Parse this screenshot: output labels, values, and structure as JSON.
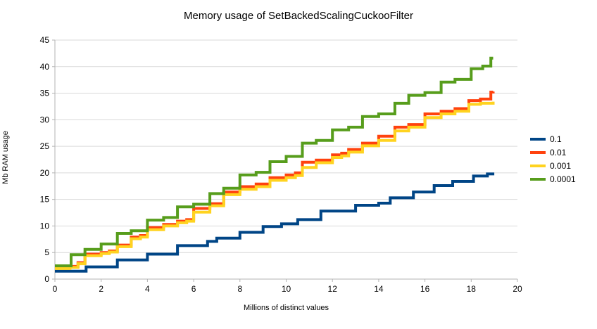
{
  "chart_data": {
    "type": "line",
    "line_style": "step",
    "title": "Memory usage of SetBackedScalingCuckooFilter",
    "xlabel": "Millions of distinct values",
    "ylabel": "Mb RAM usage",
    "xlim": [
      0,
      20
    ],
    "ylim": [
      0,
      45
    ],
    "x_ticks": [
      0,
      2,
      4,
      6,
      8,
      10,
      12,
      14,
      16,
      18,
      20
    ],
    "y_ticks": [
      0,
      5,
      10,
      15,
      20,
      25,
      30,
      35,
      40,
      45
    ],
    "grid": "horizontal",
    "legend_position": "right",
    "series": [
      {
        "name": "0.1",
        "color": "#004586",
        "points": [
          [
            0,
            1.5
          ],
          [
            1.35,
            2.3
          ],
          [
            2.7,
            3.6
          ],
          [
            4.0,
            4.7
          ],
          [
            5.3,
            6.3
          ],
          [
            6.6,
            7.1
          ],
          [
            7.0,
            7.7
          ],
          [
            8.0,
            8.8
          ],
          [
            9.0,
            9.9
          ],
          [
            9.8,
            10.4
          ],
          [
            10.5,
            11.2
          ],
          [
            11.5,
            12.8
          ],
          [
            13.0,
            13.9
          ],
          [
            14.0,
            14.3
          ],
          [
            14.5,
            15.3
          ],
          [
            15.5,
            16.4
          ],
          [
            16.4,
            17.6
          ],
          [
            17.2,
            18.4
          ],
          [
            18.1,
            19.4
          ],
          [
            18.7,
            19.8
          ],
          [
            19.0,
            19.8
          ]
        ]
      },
      {
        "name": "0.01",
        "color": "#ff420e",
        "points": [
          [
            0,
            2.2
          ],
          [
            0.65,
            2.4
          ],
          [
            1.0,
            3.1
          ],
          [
            1.3,
            4.7
          ],
          [
            2.0,
            5.0
          ],
          [
            2.35,
            5.3
          ],
          [
            2.7,
            6.4
          ],
          [
            3.3,
            7.9
          ],
          [
            3.7,
            8.2
          ],
          [
            4.0,
            9.7
          ],
          [
            4.7,
            10.3
          ],
          [
            5.3,
            10.9
          ],
          [
            5.7,
            11.2
          ],
          [
            6.0,
            13.3
          ],
          [
            6.7,
            14.2
          ],
          [
            7.3,
            16.4
          ],
          [
            8.0,
            17.4
          ],
          [
            8.7,
            17.9
          ],
          [
            9.3,
            19.1
          ],
          [
            10.0,
            19.6
          ],
          [
            10.4,
            20.0
          ],
          [
            10.7,
            22.0
          ],
          [
            11.3,
            22.4
          ],
          [
            12.0,
            23.4
          ],
          [
            12.4,
            23.7
          ],
          [
            12.7,
            24.4
          ],
          [
            13.3,
            25.6
          ],
          [
            14.0,
            26.9
          ],
          [
            14.7,
            28.6
          ],
          [
            15.3,
            29.1
          ],
          [
            16.0,
            31.1
          ],
          [
            16.7,
            31.6
          ],
          [
            17.3,
            32.1
          ],
          [
            17.9,
            33.6
          ],
          [
            18.4,
            33.9
          ],
          [
            18.85,
            35.2
          ],
          [
            18.95,
            35.3
          ]
        ]
      },
      {
        "name": "0.001",
        "color": "#ffd320",
        "points": [
          [
            0,
            2.0
          ],
          [
            0.65,
            2.2
          ],
          [
            1.0,
            2.9
          ],
          [
            1.3,
            4.4
          ],
          [
            2.0,
            4.8
          ],
          [
            2.35,
            5.1
          ],
          [
            2.7,
            6.1
          ],
          [
            3.3,
            7.6
          ],
          [
            3.7,
            7.9
          ],
          [
            4.0,
            9.3
          ],
          [
            4.7,
            10.0
          ],
          [
            5.3,
            10.6
          ],
          [
            5.7,
            10.9
          ],
          [
            6.0,
            12.6
          ],
          [
            6.7,
            13.8
          ],
          [
            7.3,
            15.9
          ],
          [
            8.0,
            16.9
          ],
          [
            8.7,
            17.4
          ],
          [
            9.3,
            18.6
          ],
          [
            10.0,
            19.1
          ],
          [
            10.4,
            19.5
          ],
          [
            10.7,
            21.0
          ],
          [
            11.3,
            21.9
          ],
          [
            12.0,
            22.9
          ],
          [
            12.4,
            23.2
          ],
          [
            12.7,
            23.9
          ],
          [
            13.3,
            25.1
          ],
          [
            14.0,
            26.1
          ],
          [
            14.7,
            27.9
          ],
          [
            15.3,
            28.6
          ],
          [
            16.0,
            30.4
          ],
          [
            16.7,
            31.1
          ],
          [
            17.3,
            31.6
          ],
          [
            17.9,
            32.9
          ],
          [
            18.4,
            33.1
          ],
          [
            18.95,
            33.4
          ]
        ]
      },
      {
        "name": "0.0001",
        "color": "#579d1c",
        "points": [
          [
            0,
            2.5
          ],
          [
            0.7,
            4.6
          ],
          [
            1.3,
            5.6
          ],
          [
            2.0,
            6.6
          ],
          [
            2.7,
            8.6
          ],
          [
            3.3,
            9.1
          ],
          [
            4.0,
            11.1
          ],
          [
            4.7,
            11.6
          ],
          [
            5.3,
            13.6
          ],
          [
            6.0,
            14.1
          ],
          [
            6.7,
            16.1
          ],
          [
            7.3,
            17.1
          ],
          [
            8.0,
            19.6
          ],
          [
            8.7,
            20.1
          ],
          [
            9.3,
            22.1
          ],
          [
            10.0,
            23.1
          ],
          [
            10.7,
            25.6
          ],
          [
            11.3,
            26.1
          ],
          [
            12.0,
            28.1
          ],
          [
            12.7,
            28.6
          ],
          [
            13.3,
            30.6
          ],
          [
            14.0,
            31.1
          ],
          [
            14.7,
            33.1
          ],
          [
            15.3,
            34.6
          ],
          [
            16.0,
            35.1
          ],
          [
            16.7,
            37.1
          ],
          [
            17.3,
            37.6
          ],
          [
            18.0,
            39.6
          ],
          [
            18.5,
            40.1
          ],
          [
            18.85,
            41.6
          ],
          [
            18.95,
            41.6
          ]
        ]
      }
    ]
  },
  "colors": {
    "background": "#ffffff",
    "grid": "#d9d9d9",
    "axis": "#b3b3b3",
    "text": "#000000"
  }
}
